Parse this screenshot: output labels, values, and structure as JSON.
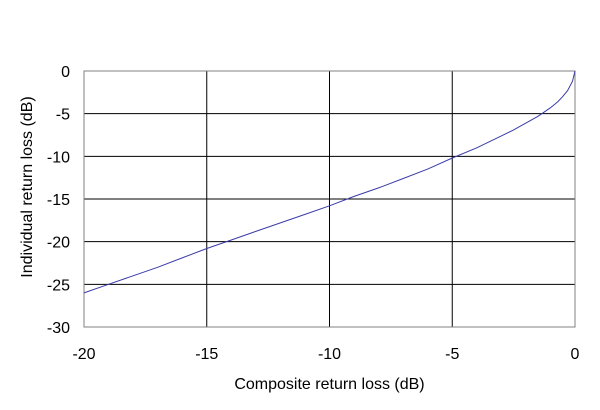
{
  "chart_data": {
    "type": "line",
    "title": "",
    "xlabel": "Composite return loss (dB)",
    "ylabel": "Individual return loss (dB)",
    "xlim": [
      -20,
      0
    ],
    "ylim": [
      -30,
      0
    ],
    "x_ticks": [
      -20,
      -15,
      -10,
      -5,
      0
    ],
    "y_ticks": [
      0,
      -5,
      -10,
      -15,
      -20,
      -25,
      -30
    ],
    "x_tick_labels": [
      "-20",
      "-15",
      "-10",
      "-5",
      "0"
    ],
    "y_tick_labels": [
      "0",
      "-5",
      "-10",
      "-15",
      "-20",
      "-25",
      "-30"
    ],
    "grid": true,
    "legend": false,
    "series": [
      {
        "color": "#3b3ba8",
        "x": [
          -20,
          -19,
          -18,
          -17,
          -16,
          -15,
          -14,
          -13,
          -12,
          -11,
          -10,
          -9,
          -8,
          -7,
          -6,
          -5,
          -4,
          -3,
          -2.5,
          -2,
          -1.5,
          -1,
          -0.7,
          -0.5,
          -0.3,
          -0.1,
          0
        ],
        "y": [
          -26.0,
          -25.0,
          -24.0,
          -23.0,
          -21.9,
          -20.8,
          -19.8,
          -18.8,
          -17.8,
          -16.8,
          -15.8,
          -14.7,
          -13.7,
          -12.6,
          -11.5,
          -10.2,
          -9.0,
          -7.6,
          -6.9,
          -6.1,
          -5.3,
          -4.3,
          -3.6,
          -3.0,
          -2.3,
          -1.2,
          0
        ]
      }
    ]
  }
}
